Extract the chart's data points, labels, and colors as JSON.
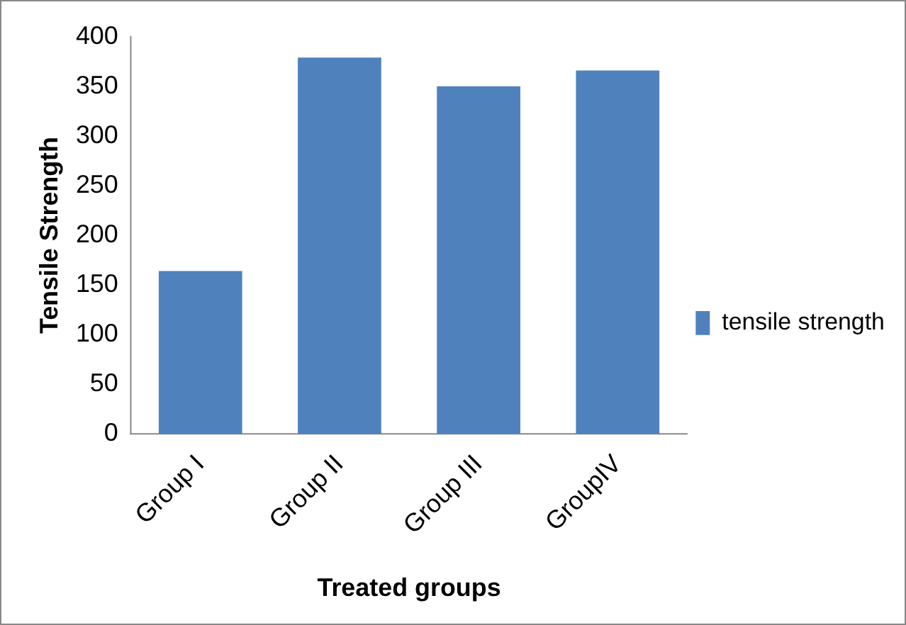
{
  "chart_data": {
    "type": "bar",
    "xlabel": "Treated groups",
    "ylabel": "Tensile Strength",
    "categories": [
      "Group I",
      "Group II",
      "Group III",
      "GroupIV"
    ],
    "series": [
      {
        "name": "tensile strength",
        "color": "#4f81bd",
        "values": [
          164,
          379,
          350,
          366
        ]
      }
    ],
    "ylim": [
      0,
      400
    ],
    "yticks": [
      0,
      50,
      100,
      150,
      200,
      250,
      300,
      350,
      400
    ],
    "grid": false,
    "legend": "right"
  }
}
